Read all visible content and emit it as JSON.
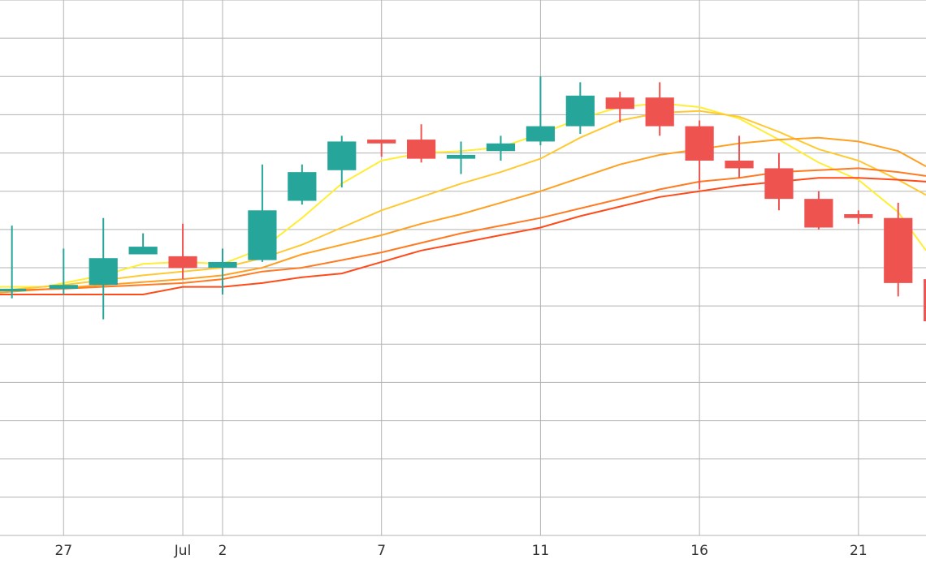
{
  "chart_data": {
    "type": "candlestick",
    "title": "",
    "xlabel": "",
    "ylabel": "",
    "x_domain": [
      25.4,
      48.7
    ],
    "y_domain": [
      0,
      14
    ],
    "grid": true,
    "x_ticks": [
      {
        "x": 27,
        "label": "27"
      },
      {
        "x": 30,
        "label": "Jul"
      },
      {
        "x": 31,
        "label": "2"
      },
      {
        "x": 35,
        "label": "7"
      },
      {
        "x": 39,
        "label": "11"
      },
      {
        "x": 43,
        "label": "16"
      },
      {
        "x": 47,
        "label": "21"
      }
    ],
    "candles": [
      {
        "x": 25.7,
        "open": 6.45,
        "close": 6.45,
        "high": 8.1,
        "low": 6.2
      },
      {
        "x": 27.0,
        "open": 6.45,
        "close": 6.55,
        "high": 7.5,
        "low": 6.3
      },
      {
        "x": 28.0,
        "open": 6.55,
        "close": 7.25,
        "high": 8.3,
        "low": 5.65
      },
      {
        "x": 29.0,
        "open": 7.35,
        "close": 7.55,
        "high": 7.9,
        "low": 7.35
      },
      {
        "x": 30.0,
        "open": 7.3,
        "close": 6.99,
        "high": 8.15,
        "low": 6.7
      },
      {
        "x": 31.0,
        "open": 7.0,
        "close": 7.15,
        "high": 7.5,
        "low": 6.3
      },
      {
        "x": 32.0,
        "open": 7.2,
        "close": 8.5,
        "high": 9.7,
        "low": 7.15
      },
      {
        "x": 33.0,
        "open": 8.75,
        "close": 9.5,
        "high": 9.7,
        "low": 8.65
      },
      {
        "x": 34.0,
        "open": 9.55,
        "close": 10.3,
        "high": 10.45,
        "low": 9.1
      },
      {
        "x": 35.0,
        "open": 10.35,
        "close": 10.25,
        "high": 10.35,
        "low": 9.9
      },
      {
        "x": 36.0,
        "open": 10.35,
        "close": 9.85,
        "high": 10.75,
        "low": 9.75
      },
      {
        "x": 37.0,
        "open": 9.85,
        "close": 9.95,
        "high": 10.3,
        "low": 9.45
      },
      {
        "x": 38.0,
        "open": 10.05,
        "close": 10.25,
        "high": 10.45,
        "low": 9.8
      },
      {
        "x": 39.0,
        "open": 10.3,
        "close": 10.7,
        "high": 12.0,
        "low": 10.2
      },
      {
        "x": 40.0,
        "open": 10.7,
        "close": 11.5,
        "high": 11.85,
        "low": 10.5
      },
      {
        "x": 41.0,
        "open": 11.45,
        "close": 11.15,
        "high": 11.6,
        "low": 10.8
      },
      {
        "x": 42.0,
        "open": 11.45,
        "close": 10.7,
        "high": 11.85,
        "low": 10.45
      },
      {
        "x": 43.0,
        "open": 10.7,
        "close": 9.8,
        "high": 10.85,
        "low": 9.05
      },
      {
        "x": 44.0,
        "open": 9.8,
        "close": 9.6,
        "high": 10.45,
        "low": 9.35
      },
      {
        "x": 45.0,
        "open": 9.6,
        "close": 8.8,
        "high": 10.0,
        "low": 8.5
      },
      {
        "x": 46.0,
        "open": 8.8,
        "close": 8.05,
        "high": 9.0,
        "low": 8.0
      },
      {
        "x": 47.0,
        "open": 8.4,
        "close": 8.3,
        "high": 8.5,
        "low": 8.15
      },
      {
        "x": 48.0,
        "open": 8.3,
        "close": 6.6,
        "high": 8.7,
        "low": 6.25
      },
      {
        "x": 49.0,
        "open": 6.7,
        "close": 5.6,
        "high": 6.75,
        "low": 5.45
      }
    ],
    "moving_averages": [
      {
        "color": "#ffee33",
        "points": [
          [
            25.4,
            6.5
          ],
          [
            26.5,
            6.5
          ],
          [
            28.0,
            6.8
          ],
          [
            29.0,
            7.1
          ],
          [
            30.0,
            7.15
          ],
          [
            31.0,
            7.1
          ],
          [
            32.0,
            7.5
          ],
          [
            33.0,
            8.3
          ],
          [
            34.0,
            9.2
          ],
          [
            35.0,
            9.8
          ],
          [
            36.0,
            10.0
          ],
          [
            37.0,
            10.05
          ],
          [
            38.0,
            10.15
          ],
          [
            39.0,
            10.5
          ],
          [
            40.0,
            10.9
          ],
          [
            41.0,
            11.2
          ],
          [
            42.0,
            11.3
          ],
          [
            43.0,
            11.2
          ],
          [
            44.0,
            10.9
          ],
          [
            45.0,
            10.35
          ],
          [
            46.0,
            9.75
          ],
          [
            47.0,
            9.3
          ],
          [
            48.0,
            8.45
          ],
          [
            48.7,
            7.45
          ]
        ]
      },
      {
        "color": "#ffc933",
        "points": [
          [
            25.4,
            6.4
          ],
          [
            27.0,
            6.55
          ],
          [
            29.0,
            6.8
          ],
          [
            31.0,
            7.0
          ],
          [
            32.0,
            7.25
          ],
          [
            33.0,
            7.6
          ],
          [
            34.0,
            8.05
          ],
          [
            35.0,
            8.5
          ],
          [
            36.0,
            8.85
          ],
          [
            37.0,
            9.2
          ],
          [
            38.0,
            9.5
          ],
          [
            39.0,
            9.85
          ],
          [
            40.0,
            10.4
          ],
          [
            41.0,
            10.85
          ],
          [
            42.0,
            11.05
          ],
          [
            43.0,
            11.1
          ],
          [
            44.0,
            10.95
          ],
          [
            45.0,
            10.55
          ],
          [
            46.0,
            10.1
          ],
          [
            47.0,
            9.8
          ],
          [
            48.0,
            9.3
          ],
          [
            48.7,
            8.9
          ]
        ]
      },
      {
        "color": "#ffa022",
        "points": [
          [
            25.4,
            6.35
          ],
          [
            28.0,
            6.55
          ],
          [
            30.0,
            6.7
          ],
          [
            31.0,
            6.8
          ],
          [
            32.0,
            7.0
          ],
          [
            33.0,
            7.35
          ],
          [
            34.0,
            7.6
          ],
          [
            35.0,
            7.85
          ],
          [
            36.0,
            8.15
          ],
          [
            37.0,
            8.4
          ],
          [
            38.0,
            8.7
          ],
          [
            39.0,
            9.0
          ],
          [
            40.0,
            9.35
          ],
          [
            41.0,
            9.7
          ],
          [
            42.0,
            9.95
          ],
          [
            43.0,
            10.1
          ],
          [
            44.0,
            10.25
          ],
          [
            45.0,
            10.35
          ],
          [
            46.0,
            10.4
          ],
          [
            47.0,
            10.3
          ],
          [
            48.0,
            10.05
          ],
          [
            48.7,
            9.65
          ]
        ]
      },
      {
        "color": "#ff7a22",
        "points": [
          [
            25.4,
            6.4
          ],
          [
            27.0,
            6.45
          ],
          [
            29.0,
            6.55
          ],
          [
            30.0,
            6.6
          ],
          [
            31.0,
            6.7
          ],
          [
            32.0,
            6.9
          ],
          [
            33.0,
            7.0
          ],
          [
            34.0,
            7.2
          ],
          [
            35.0,
            7.4
          ],
          [
            36.0,
            7.65
          ],
          [
            37.0,
            7.9
          ],
          [
            38.0,
            8.1
          ],
          [
            39.0,
            8.3
          ],
          [
            40.0,
            8.55
          ],
          [
            41.0,
            8.8
          ],
          [
            42.0,
            9.05
          ],
          [
            43.0,
            9.25
          ],
          [
            44.0,
            9.35
          ],
          [
            45.0,
            9.5
          ],
          [
            46.0,
            9.55
          ],
          [
            47.0,
            9.6
          ],
          [
            48.0,
            9.5
          ],
          [
            48.7,
            9.4
          ]
        ]
      },
      {
        "color": "#ff4a1a",
        "points": [
          [
            25.4,
            6.3
          ],
          [
            28.0,
            6.3
          ],
          [
            29.0,
            6.3
          ],
          [
            30.0,
            6.5
          ],
          [
            31.0,
            6.5
          ],
          [
            32.0,
            6.6
          ],
          [
            33.0,
            6.75
          ],
          [
            34.0,
            6.85
          ],
          [
            35.0,
            7.15
          ],
          [
            36.0,
            7.45
          ],
          [
            37.0,
            7.65
          ],
          [
            38.0,
            7.85
          ],
          [
            39.0,
            8.05
          ],
          [
            40.0,
            8.35
          ],
          [
            41.0,
            8.6
          ],
          [
            42.0,
            8.85
          ],
          [
            43.0,
            9.0
          ],
          [
            44.0,
            9.15
          ],
          [
            45.0,
            9.25
          ],
          [
            46.0,
            9.35
          ],
          [
            47.0,
            9.35
          ],
          [
            48.0,
            9.3
          ],
          [
            48.7,
            9.25
          ]
        ]
      }
    ],
    "colors": {
      "up": "#26a69a",
      "down": "#ef5350",
      "grid": "#b3b3b3",
      "axis_text": "#333333"
    }
  }
}
